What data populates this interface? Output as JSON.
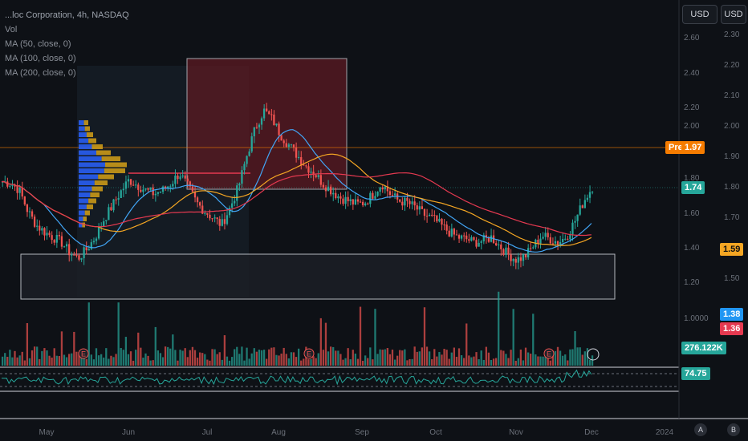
{
  "legend": {
    "symbol": "...loc Corporation, 4h, NASDAQ",
    "vol": "Vol",
    "ma50": "MA (50, close, 0)",
    "ma100": "MA (100, close, 0)",
    "ma200": "MA (200, close, 0)"
  },
  "currency": {
    "left": "USD",
    "right": "USD"
  },
  "price_tags": {
    "pre_label": "Pre",
    "pre_value": "1.97",
    "last": "1.74",
    "ma_yellow": "1.59",
    "ma_blue": "1.38",
    "ma_red": "1.36",
    "volume": "276.122K",
    "rsi": "74.75"
  },
  "axis_buttons": {
    "a": "A",
    "b": "B"
  },
  "earnings_marker": "E",
  "colors": {
    "up": "#26a69a",
    "down": "#ef5350",
    "ma50": "#42a5f5",
    "ma100": "#f5a623",
    "ma200": "#e53950",
    "rsi": "#26a69a",
    "pre": "#f57c00",
    "last": "#26a69a"
  },
  "chart_data": {
    "type": "line",
    "months": [
      "May",
      "Jun",
      "Jul",
      "Aug",
      "Sep",
      "Oct",
      "Nov",
      "Dec",
      "2024"
    ],
    "left_ticks": [
      "2.60",
      "2.40",
      "2.20",
      "2.00",
      "1.80",
      "1.60",
      "1.40",
      "1.20",
      "1.0000"
    ],
    "right_ticks": [
      "2.30",
      "2.20",
      "2.10",
      "2.00",
      "1.90",
      "1.80",
      "1.70",
      "1.60",
      "1.50"
    ],
    "price_close_approx": [
      1.77,
      1.76,
      1.72,
      1.6,
      1.52,
      1.48,
      1.45,
      1.42,
      1.36,
      1.33,
      1.38,
      1.45,
      1.55,
      1.63,
      1.71,
      1.78,
      1.75,
      1.72,
      1.7,
      1.72,
      1.76,
      1.82,
      1.74,
      1.65,
      1.6,
      1.56,
      1.52,
      1.62,
      1.74,
      1.92,
      2.08,
      2.18,
      2.13,
      2.04,
      1.98,
      1.92,
      1.86,
      1.82,
      1.76,
      1.72,
      1.68,
      1.66,
      1.64,
      1.65,
      1.7,
      1.76,
      1.7,
      1.66,
      1.65,
      1.62,
      1.58,
      1.56,
      1.52,
      1.48,
      1.45,
      1.44,
      1.42,
      1.43,
      1.45,
      1.4,
      1.35,
      1.32,
      1.34,
      1.4,
      1.46,
      1.44,
      1.42,
      1.46,
      1.55,
      1.66,
      1.74
    ],
    "ma_values": {
      "ma50": 1.38,
      "ma100": 1.59,
      "ma200": 1.36
    },
    "last_price": 1.74,
    "pre_market": 1.97,
    "volume_last": "276.122K",
    "rsi_last": 74.75
  }
}
